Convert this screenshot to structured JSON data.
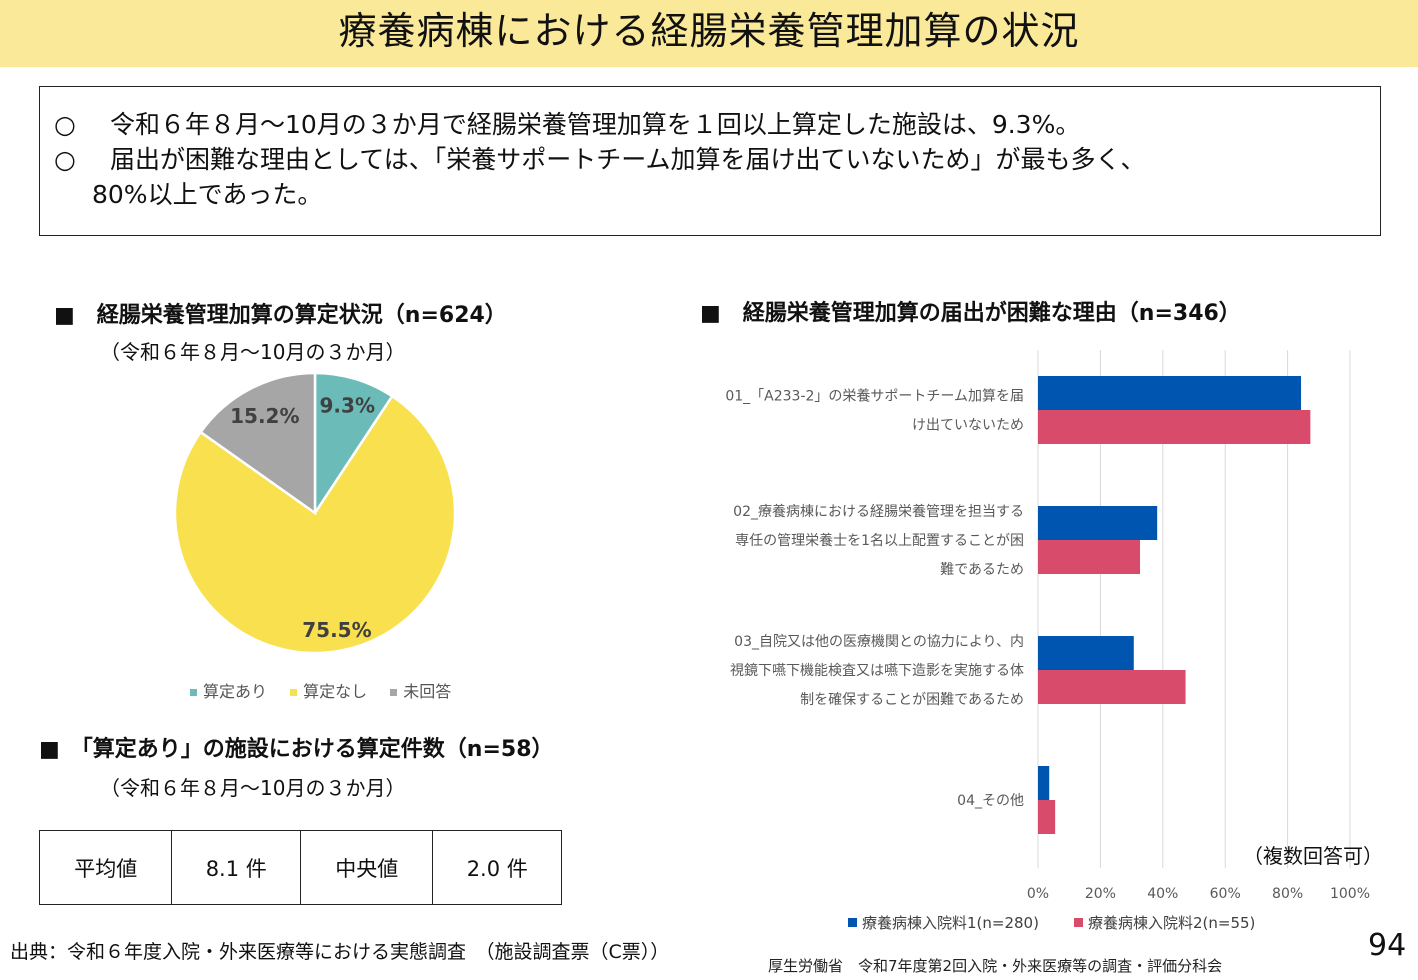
{
  "title": "療養病棟における経腸栄養管理加算の状況",
  "summary": {
    "bullet": "○",
    "line1": "令和６年８月～10月の３か月で経腸栄養管理加算を１回以上算定した施設は、9.3%。",
    "line2": "届出が困難な理由としては、「栄養サポートチーム加算を届け出ていないため」が最も多く、",
    "line2_cont": "80%以上であった。"
  },
  "pie_section": {
    "heading": "■　経腸栄養管理加算の算定状況（n=624）",
    "period": "（令和６年８月～10月の３か月）"
  },
  "bar_section": {
    "heading": "■　経腸栄養管理加算の届出が困難な理由（n=346）",
    "note": "（複数回答可）"
  },
  "count_section": {
    "heading": "■　「算定あり」の施設における算定件数（n=58）",
    "period": "（令和６年８月～10月の３か月）",
    "table": [
      "平均値",
      "8.1 件",
      "中央値",
      "2.0 件"
    ]
  },
  "source": "出典：令和６年度入院・外来医療等における実態調査　（施設調査票（C票））",
  "footer": "厚生労働省　令和7年度第2回入院・外来医療等の調査・評価分科会",
  "page_number": "94",
  "chart_data": [
    {
      "type": "pie",
      "categories": [
        "算定あり",
        "算定なし",
        "未回答"
      ],
      "values": [
        9.3,
        75.5,
        15.2
      ],
      "labels": [
        "9.3%",
        "75.5%",
        "15.2%"
      ],
      "colors": [
        "#6bbbb9",
        "#f8e04e",
        "#a6a6a6"
      ],
      "legend_position": "bottom"
    },
    {
      "type": "bar",
      "orientation": "horizontal",
      "categories": [
        [
          "01_「A233-2」の栄養サポートチーム加算を届",
          "け出ていないため"
        ],
        [
          "02_療養病棟における経腸栄養管理を担当する",
          "専任の管理栄養士を1名以上配置することが困",
          "難であるため"
        ],
        [
          "03_自院又は他の医療機関との協力により、内",
          "視鏡下嚥下機能検査又は嚥下造影を実施する体",
          "制を確保することが困難であるため"
        ],
        [
          "04_その他"
        ]
      ],
      "series": [
        {
          "name": "療養病棟入院料1(n=280)",
          "values": [
            84.3,
            38.2,
            30.7,
            3.6
          ],
          "color": "#0055b0"
        },
        {
          "name": "療養病棟入院料2(n=55)",
          "values": [
            87.3,
            32.7,
            47.3,
            5.5
          ],
          "color": "#d94b6a"
        }
      ],
      "xlim": [
        0,
        100
      ],
      "xticks": [
        "0%",
        "20%",
        "40%",
        "60%",
        "80%",
        "100%"
      ],
      "grid": true,
      "legend_position": "bottom"
    }
  ]
}
